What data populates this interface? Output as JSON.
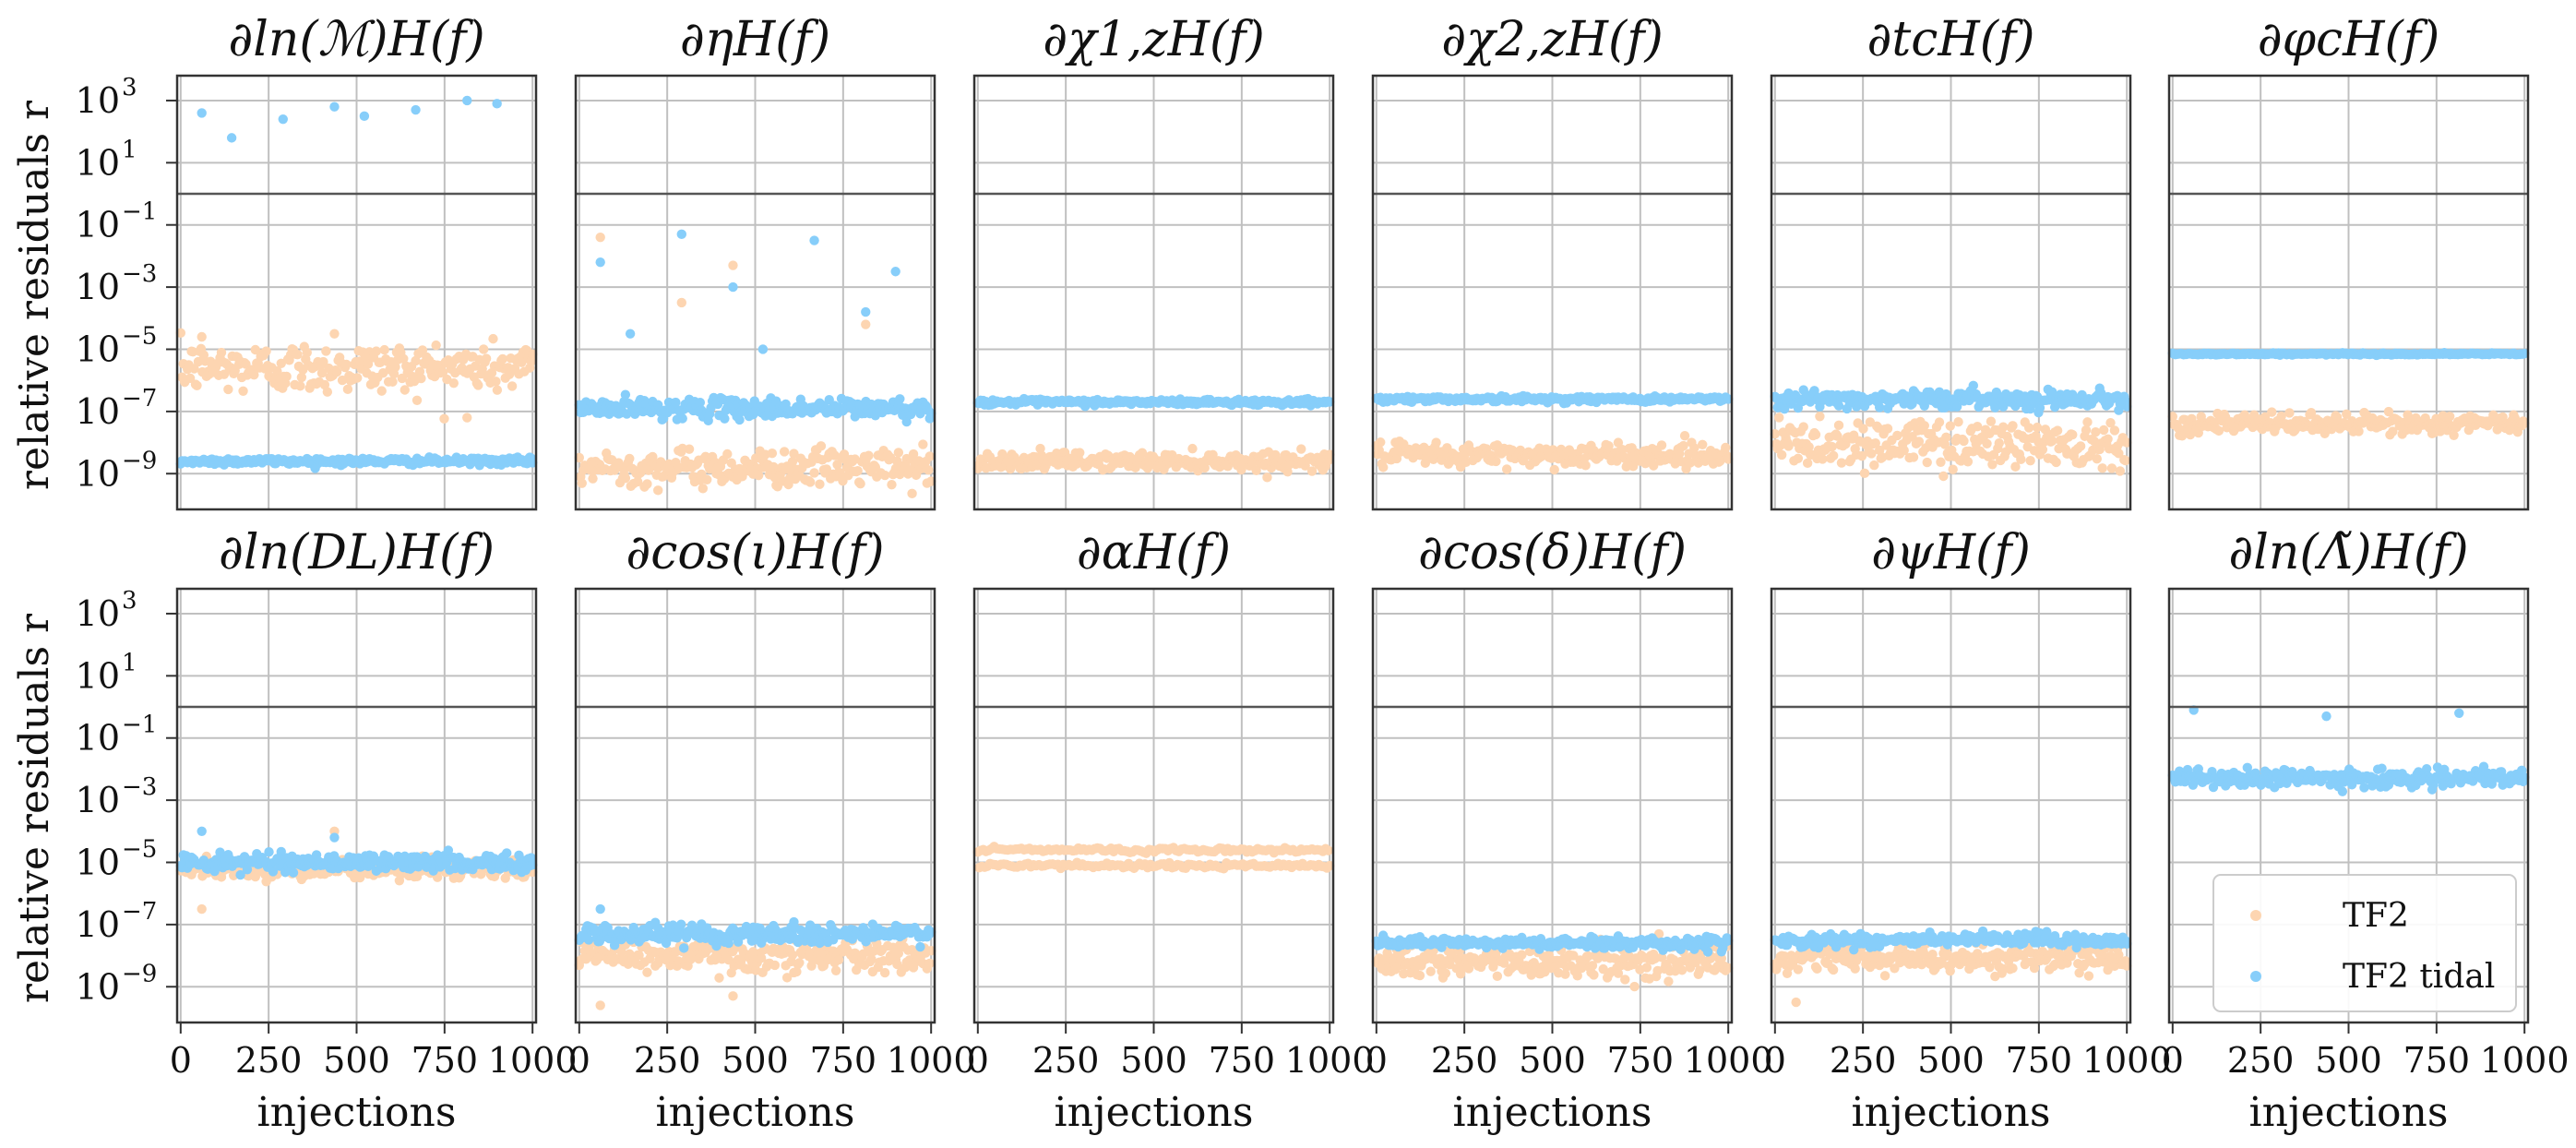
{
  "figure": {
    "ylabel": "relative residuals r",
    "xlabel": "injections",
    "colors": {
      "tf2": "#fdd5b1",
      "tf2_tidal": "#87cefa",
      "grid": "#c0c0c0",
      "axes": "#333333",
      "refline": "#555555"
    },
    "legend": {
      "placement": "lower-right of last panel",
      "entries": [
        "TF2",
        "TF2 tidal"
      ]
    }
  },
  "chart_data": {
    "type": "scatter",
    "layout": "2 rows x 6 columns, shared axes",
    "yscale": "log",
    "ylim_exponent": [
      -10,
      4
    ],
    "xlim": [
      -10,
      1010
    ],
    "xticks": [
      0,
      250,
      500,
      750,
      1000
    ],
    "xtick_labels": [
      "0",
      "250",
      "500",
      "750",
      "1000"
    ],
    "yticks_exponent": [
      3,
      1,
      -1,
      -3,
      -5,
      -7,
      -9
    ],
    "ytick_labels": [
      "10",
      "10",
      "10",
      "10",
      "10",
      "10",
      "10"
    ],
    "ytick_exponents": [
      "3",
      "1",
      "−1",
      "−3",
      "−5",
      "−7",
      "−9"
    ],
    "reference_line_y": 1,
    "series_names": [
      "TF2",
      "TF2 tidal"
    ],
    "panels": [
      {
        "title": "∂ln(ℳ)H(f)",
        "TF2": {
          "log10_center": -5.6,
          "log10_spread": 0.9,
          "outliers": [
            -4.6,
            -4.5,
            -7.2
          ]
        },
        "TF2 tidal": {
          "log10_center": -8.6,
          "log10_spread": 0.12,
          "outliers": [
            2.6,
            2.8,
            3.0,
            2.4,
            2.7,
            1.8,
            2.5,
            2.9
          ]
        }
      },
      {
        "title": "∂ηH(f)",
        "TF2": {
          "log10_center": -8.8,
          "log10_spread": 0.65,
          "outliers": [
            -1.4,
            -2.3,
            -4.2,
            -3.5
          ]
        },
        "TF2 tidal": {
          "log10_center": -6.9,
          "log10_spread": 0.35,
          "outliers": [
            -2.2,
            -3.0,
            -3.8,
            -1.3,
            -1.5,
            -4.5,
            -5.0,
            -2.5
          ]
        }
      },
      {
        "title": "∂χ1,zH(f)",
        "TF2": {
          "log10_center": -8.6,
          "log10_spread": 0.3,
          "outliers": []
        },
        "TF2 tidal": {
          "log10_center": -6.7,
          "log10_spread": 0.1,
          "outliers": []
        }
      },
      {
        "title": "∂χ2,zH(f)",
        "TF2": {
          "log10_center": -8.4,
          "log10_spread": 0.4,
          "outliers": []
        },
        "TF2 tidal": {
          "log10_center": -6.6,
          "log10_spread": 0.1,
          "outliers": []
        }
      },
      {
        "title": "∂tcH(f)",
        "TF2": {
          "log10_center": -8.0,
          "log10_spread": 0.9,
          "outliers": []
        },
        "TF2 tidal": {
          "log10_center": -6.6,
          "log10_spread": 0.3,
          "outliers": []
        }
      },
      {
        "title": "∂φcH(f)",
        "TF2": {
          "log10_center": -7.4,
          "log10_spread": 0.35,
          "outliers": []
        },
        "TF2 tidal": {
          "log10_center": -5.15,
          "log10_spread": 0.03,
          "outliers": []
        }
      },
      {
        "title": "∂ln(DL)H(f)",
        "TF2": {
          "log10_center": -5.2,
          "log10_spread": 0.35,
          "outliers": [
            -6.5,
            -4.0
          ]
        },
        "TF2 tidal": {
          "log10_center": -5.0,
          "log10_spread": 0.3,
          "outliers": [
            -4.0,
            -4.2
          ]
        }
      },
      {
        "title": "∂cos(ι)H(f)",
        "TF2": {
          "log10_center": -8.0,
          "log10_spread": 0.6,
          "outliers": [
            -9.6,
            -9.3
          ]
        },
        "TF2 tidal": {
          "log10_center": -7.3,
          "log10_spread": 0.35,
          "outliers": [
            -6.5
          ]
        }
      },
      {
        "title": "∂αH(f)",
        "TF2": {
          "log10_center": -4.85,
          "log10_spread": 0.3,
          "outliers": [],
          "bands": [
            -4.6,
            -5.1
          ]
        },
        "TF2 tidal": {
          "log10_center": -4.85,
          "log10_spread": 0.0,
          "outliers": [],
          "hidden": true
        }
      },
      {
        "title": "∂cos(δ)H(f)",
        "TF2": {
          "log10_center": -8.2,
          "log10_spread": 0.55,
          "outliers": []
        },
        "TF2 tidal": {
          "log10_center": -7.6,
          "log10_spread": 0.2,
          "outliers": []
        }
      },
      {
        "title": "∂ψH(f)",
        "TF2": {
          "log10_center": -8.1,
          "log10_spread": 0.5,
          "outliers": [
            -9.5
          ]
        },
        "TF2 tidal": {
          "log10_center": -7.5,
          "log10_spread": 0.25,
          "outliers": []
        }
      },
      {
        "title": "∂ln(Λ̃)H(f)",
        "TF2": {
          "log10_center": -2.3,
          "log10_spread": 0.3,
          "outliers": [],
          "hidden": true
        },
        "TF2 tidal": {
          "log10_center": -2.3,
          "log10_spread": 0.3,
          "outliers": [
            -0.1,
            -0.3,
            -0.2
          ]
        }
      }
    ]
  }
}
